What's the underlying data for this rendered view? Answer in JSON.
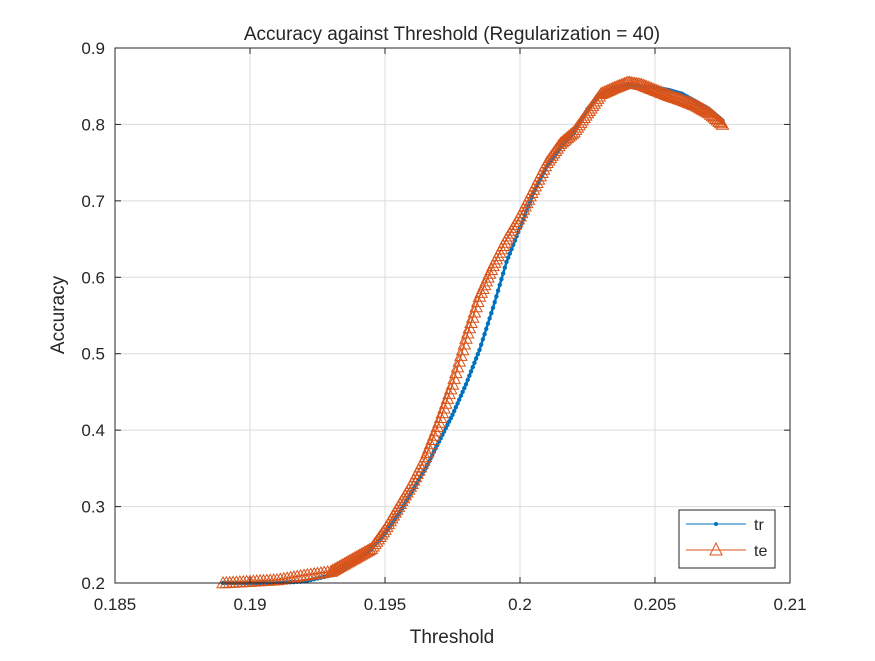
{
  "chart_data": {
    "type": "line",
    "title": "Accuracy against Threshold (Regularization = 40)",
    "xlabel": "Threshold",
    "ylabel": "Accuracy",
    "xlim": [
      0.185,
      0.21
    ],
    "ylim": [
      0.2,
      0.9
    ],
    "xticks": [
      0.185,
      0.19,
      0.195,
      0.2,
      0.205,
      0.21
    ],
    "xtick_labels": [
      "0.185",
      "0.19",
      "0.195",
      "0.2",
      "0.205",
      "0.21"
    ],
    "yticks": [
      0.2,
      0.3,
      0.4,
      0.5,
      0.6,
      0.7,
      0.8,
      0.9
    ],
    "ytick_labels": [
      "0.2",
      "0.3",
      "0.4",
      "0.5",
      "0.6",
      "0.7",
      "0.8",
      "0.9"
    ],
    "grid": true,
    "legend_position": "bottom-right",
    "series": [
      {
        "name": "tr",
        "color": "#0072BD",
        "marker": "dot",
        "points": [
          [
            0.189,
            0.2
          ],
          [
            0.19,
            0.2
          ],
          [
            0.191,
            0.2
          ],
          [
            0.192,
            0.202
          ],
          [
            0.193,
            0.21
          ],
          [
            0.1935,
            0.22
          ],
          [
            0.194,
            0.23
          ],
          [
            0.1945,
            0.245
          ],
          [
            0.195,
            0.265
          ],
          [
            0.1955,
            0.29
          ],
          [
            0.196,
            0.32
          ],
          [
            0.1965,
            0.35
          ],
          [
            0.197,
            0.385
          ],
          [
            0.1975,
            0.42
          ],
          [
            0.198,
            0.46
          ],
          [
            0.1985,
            0.505
          ],
          [
            0.199,
            0.56
          ],
          [
            0.1995,
            0.62
          ],
          [
            0.2,
            0.665
          ],
          [
            0.2005,
            0.71
          ],
          [
            0.201,
            0.745
          ],
          [
            0.2015,
            0.77
          ],
          [
            0.202,
            0.79
          ],
          [
            0.2025,
            0.82
          ],
          [
            0.203,
            0.84
          ],
          [
            0.2035,
            0.848
          ],
          [
            0.204,
            0.852
          ],
          [
            0.2045,
            0.85
          ],
          [
            0.205,
            0.848
          ],
          [
            0.2055,
            0.845
          ],
          [
            0.206,
            0.84
          ],
          [
            0.2065,
            0.83
          ],
          [
            0.207,
            0.82
          ],
          [
            0.2075,
            0.805
          ]
        ]
      },
      {
        "name": "te",
        "color": "#D95319",
        "marker": "triangle",
        "points": [
          [
            0.189,
            0.2
          ],
          [
            0.19,
            0.202
          ],
          [
            0.191,
            0.204
          ],
          [
            0.192,
            0.21
          ],
          [
            0.193,
            0.215
          ],
          [
            0.1935,
            0.225
          ],
          [
            0.194,
            0.235
          ],
          [
            0.1945,
            0.245
          ],
          [
            0.195,
            0.27
          ],
          [
            0.1955,
            0.3
          ],
          [
            0.196,
            0.33
          ],
          [
            0.1965,
            0.365
          ],
          [
            0.197,
            0.41
          ],
          [
            0.1975,
            0.46
          ],
          [
            0.198,
            0.52
          ],
          [
            0.1985,
            0.575
          ],
          [
            0.199,
            0.615
          ],
          [
            0.1995,
            0.65
          ],
          [
            0.2,
            0.68
          ],
          [
            0.2005,
            0.715
          ],
          [
            0.201,
            0.75
          ],
          [
            0.2015,
            0.775
          ],
          [
            0.202,
            0.79
          ],
          [
            0.2025,
            0.815
          ],
          [
            0.203,
            0.84
          ],
          [
            0.2035,
            0.848
          ],
          [
            0.204,
            0.855
          ],
          [
            0.2045,
            0.852
          ],
          [
            0.205,
            0.845
          ],
          [
            0.2055,
            0.838
          ],
          [
            0.206,
            0.832
          ],
          [
            0.2065,
            0.825
          ],
          [
            0.207,
            0.815
          ],
          [
            0.2075,
            0.8
          ]
        ]
      }
    ]
  }
}
